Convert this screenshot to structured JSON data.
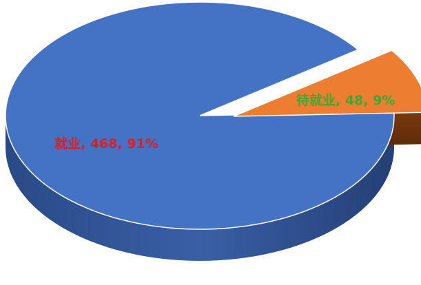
{
  "chart_data": {
    "type": "pie",
    "style": "3d-exploded",
    "title": "",
    "categories": [
      "就业",
      "待就业"
    ],
    "values": [
      468,
      48
    ],
    "percents": [
      91,
      9
    ],
    "labels": [
      "就业, 468, 91%",
      "待就业, 48, 9%"
    ],
    "colors": {
      "top": [
        "#4472C4",
        "#ED7D31"
      ],
      "side": [
        "#2F528F",
        "#8A3F10"
      ],
      "label": [
        "#E31B23",
        "#3BAA35"
      ]
    },
    "exploded_slice": "待就业"
  }
}
